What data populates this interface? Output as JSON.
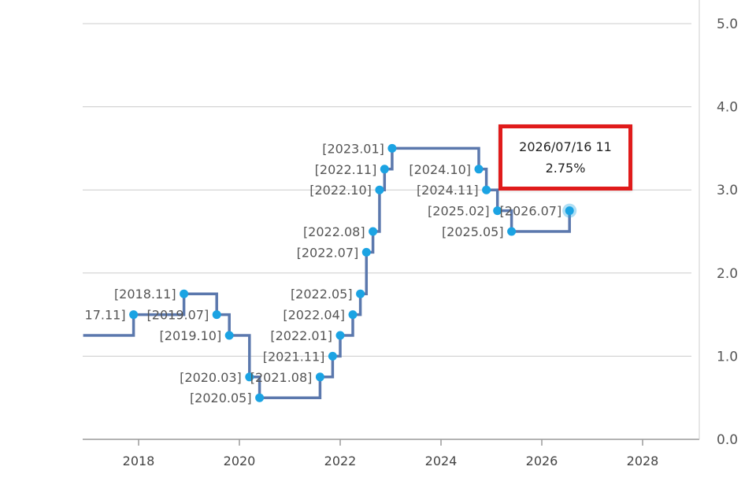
{
  "chart_data": {
    "type": "line",
    "step": true,
    "title": "",
    "xlabel": "",
    "ylabel": "",
    "xlim": [
      2016.9,
      2029.1
    ],
    "ylim": [
      0.0,
      5.0
    ],
    "x_ticks": [
      "2018",
      "2020",
      "2022",
      "2024",
      "2026",
      "2028"
    ],
    "y_ticks": [
      "0.0",
      "1.0",
      "2.0",
      "3.0",
      "4.0",
      "5.0"
    ],
    "grid": true,
    "legend": "none",
    "colors": {
      "line": "#5b78ad",
      "marker": "#1ba3e3",
      "tooltip_border": "#e01b1b",
      "grid": "#cccccc"
    },
    "series": [
      {
        "values": [
          {
            "label": "17.11]",
            "x": 2017.9,
            "y": 1.5
          },
          {
            "label": "[2018.11]",
            "x": 2018.9,
            "y": 1.75
          },
          {
            "label": "[2019.07]",
            "x": 2019.55,
            "y": 1.5
          },
          {
            "label": "[2019.10]",
            "x": 2019.8,
            "y": 1.25
          },
          {
            "label": "[2020.03]",
            "x": 2020.2,
            "y": 0.75
          },
          {
            "label": "[2020.05]",
            "x": 2020.4,
            "y": 0.5
          },
          {
            "label": "[2021.08]",
            "x": 2021.6,
            "y": 0.75
          },
          {
            "label": "[2021.11]",
            "x": 2021.85,
            "y": 1.0
          },
          {
            "label": "[2022.01]",
            "x": 2022.0,
            "y": 1.25
          },
          {
            "label": "[2022.04]",
            "x": 2022.25,
            "y": 1.5
          },
          {
            "label": "[2022.05]",
            "x": 2022.4,
            "y": 1.75
          },
          {
            "label": "[2022.07]",
            "x": 2022.52,
            "y": 2.25
          },
          {
            "label": "[2022.08]",
            "x": 2022.65,
            "y": 2.5
          },
          {
            "label": "[2022.10]",
            "x": 2022.78,
            "y": 3.0
          },
          {
            "label": "[2022.11]",
            "x": 2022.88,
            "y": 3.25
          },
          {
            "label": "[2023.01]",
            "x": 2023.03,
            "y": 3.5
          },
          {
            "label": "[2024.10]",
            "x": 2024.75,
            "y": 3.25
          },
          {
            "label": "[2024.11]",
            "x": 2024.9,
            "y": 3.0
          },
          {
            "label": "[2025.02]",
            "x": 2025.12,
            "y": 2.75
          },
          {
            "label": "[2025.05]",
            "x": 2025.4,
            "y": 2.5
          },
          {
            "label": "[2026.07]",
            "x": 2026.55,
            "y": 2.75
          }
        ],
        "start": {
          "x": 2016.9,
          "y": 1.25
        }
      }
    ],
    "tooltip": {
      "date": "2026/07/16 11",
      "value": "2.75%"
    }
  }
}
